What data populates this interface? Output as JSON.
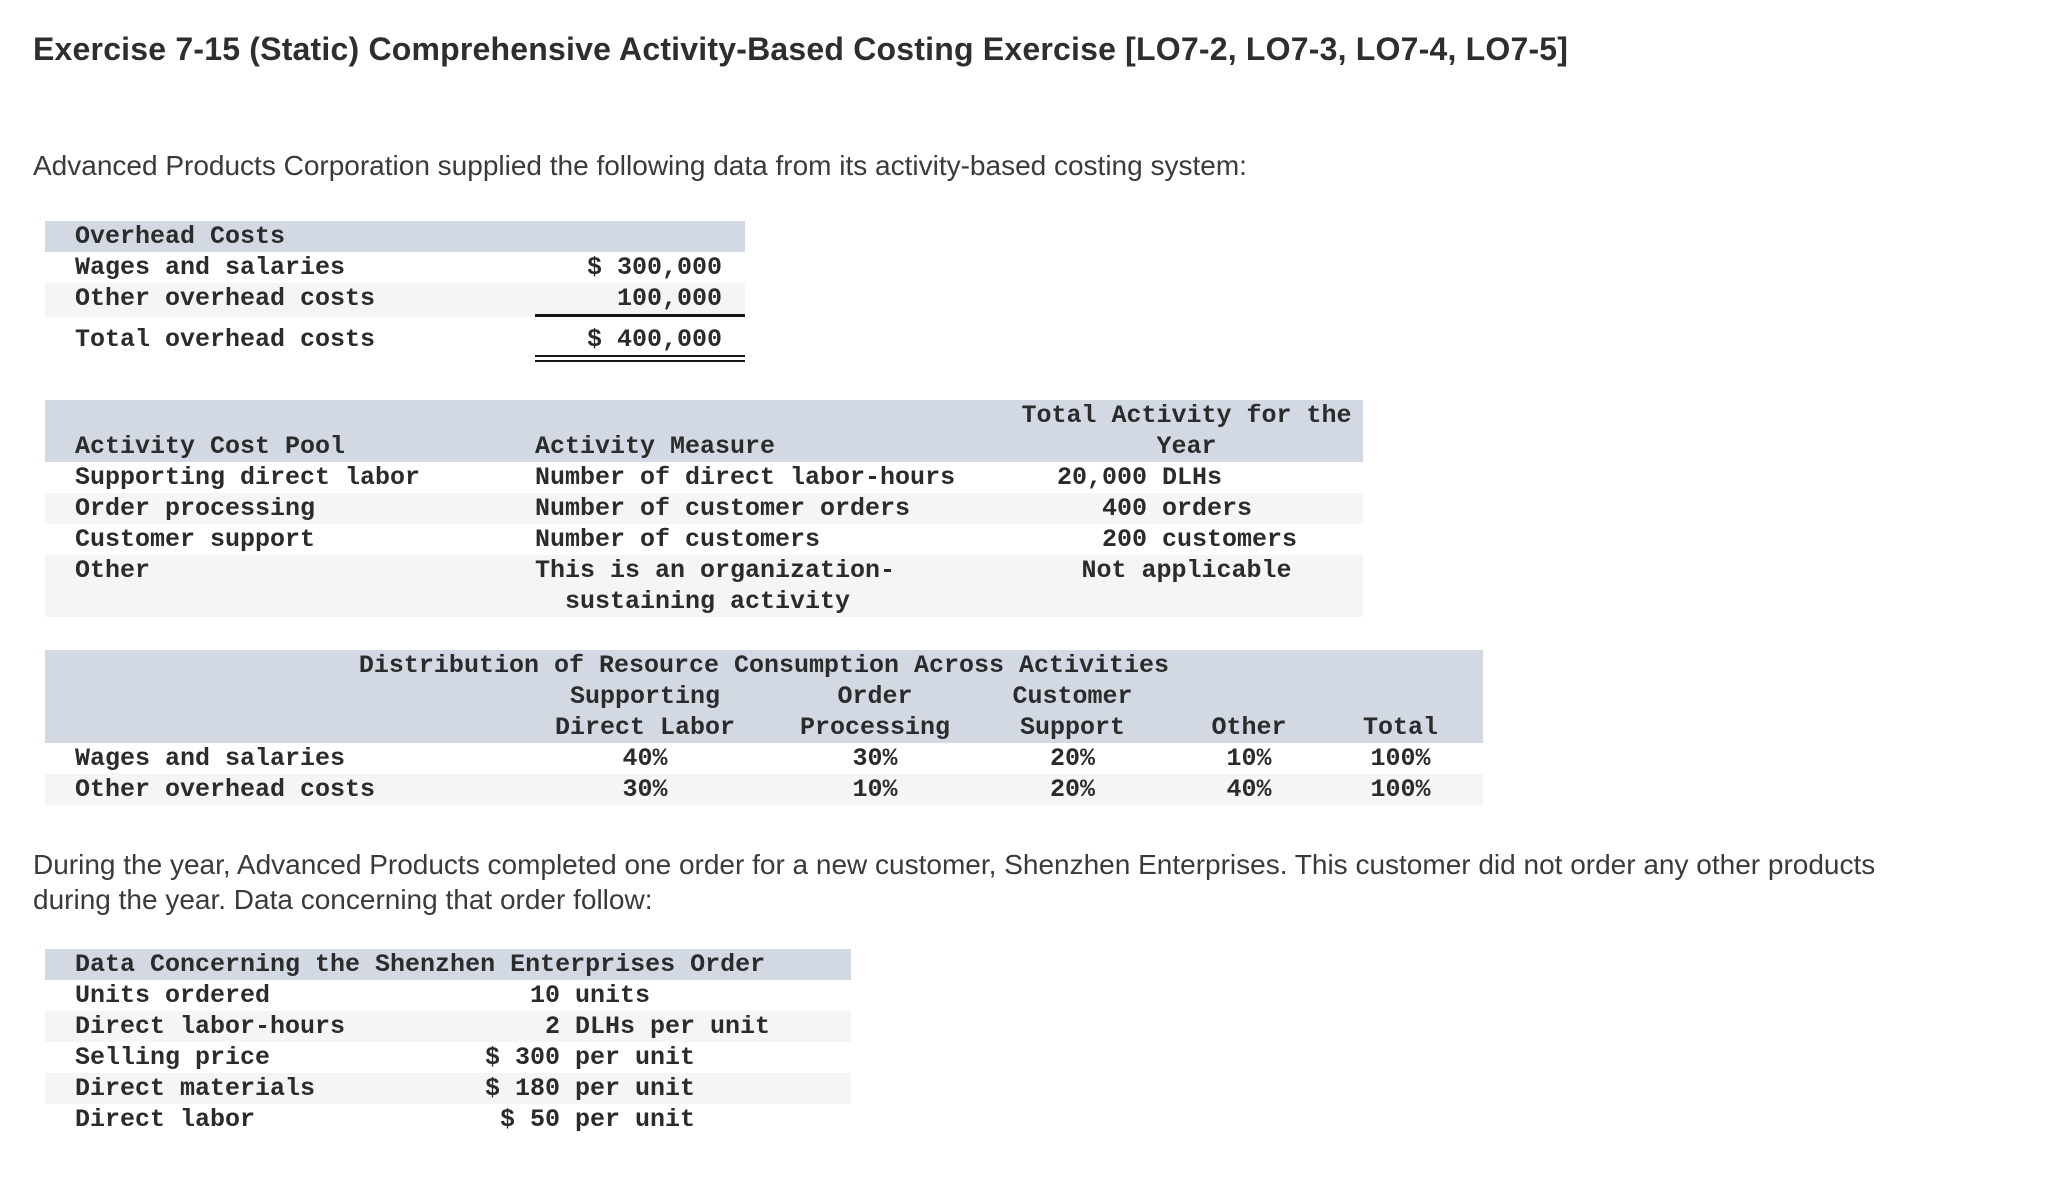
{
  "colors": {
    "band": "#d3d9e3",
    "stripe": "#f5f5f5",
    "rule": "#161616",
    "mono_text": "#2b2b2b",
    "sans_text": "#3a3a3a"
  },
  "page": {
    "title": "Exercise 7-15 (Static) Comprehensive Activity-Based Costing Exercise [LO7-2, LO7-3, LO7-4, LO7-5]",
    "intro": "Advanced Products Corporation supplied the following data from its activity-based costing system:",
    "narrative": "During the year, Advanced Products completed one order for a new customer, Shenzhen Enterprises. This customer did not order any other products during the year. Data concerning that order follow:"
  },
  "overhead_table": {
    "header": "Overhead Costs",
    "rows": [
      {
        "label": "Wages and salaries",
        "amount": "$ 300,000"
      },
      {
        "label": "Other overhead costs",
        "amount": "100,000"
      }
    ],
    "total_row": {
      "label": "Total overhead costs",
      "amount": "$ 400,000"
    }
  },
  "activity_table": {
    "col1_header": "Activity Cost Pool",
    "col2_header": "Activity Measure",
    "col3_header_line1": "Total Activity for the",
    "col3_header_line2": "Year",
    "rows": [
      {
        "pool": "Supporting direct labor",
        "measure": "Number of direct labor-hours",
        "qty": "20,000",
        "unit": "DLHs"
      },
      {
        "pool": "Order processing",
        "measure": "Number of customer orders",
        "qty": "400",
        "unit": "orders"
      },
      {
        "pool": "Customer support",
        "measure": "Number of customers",
        "qty": "200",
        "unit": "customers"
      }
    ],
    "other_row": {
      "pool": "Other",
      "measure_line1": "This is an organization-",
      "measure_line2": "sustaining activity",
      "note": "Not applicable"
    }
  },
  "distribution_table": {
    "title": "Distribution of Resource Consumption Across Activities",
    "columns": [
      [
        "Supporting",
        "Direct Labor"
      ],
      [
        "Order",
        "Processing"
      ],
      [
        "Customer",
        "Support"
      ],
      [
        "",
        "Other"
      ],
      [
        "",
        "Total"
      ]
    ],
    "rows": [
      {
        "label": "Wages and salaries",
        "values": [
          "40%",
          "30%",
          "20%",
          "10%",
          "100%"
        ]
      },
      {
        "label": "Other overhead costs",
        "values": [
          "30%",
          "10%",
          "20%",
          "40%",
          "100%"
        ]
      }
    ]
  },
  "order_table": {
    "header": "Data Concerning the Shenzhen Enterprises Order",
    "rows": [
      {
        "label": "Units ordered",
        "value": "10",
        "unit": "units"
      },
      {
        "label": "Direct labor-hours",
        "value": "2",
        "unit": "DLHs per unit"
      },
      {
        "label": "Selling price",
        "value": "$ 300",
        "unit": "per unit"
      },
      {
        "label": "Direct materials",
        "value": "$ 180",
        "unit": "per unit"
      },
      {
        "label": "Direct labor",
        "value": "$ 50",
        "unit": "per unit"
      }
    ]
  }
}
